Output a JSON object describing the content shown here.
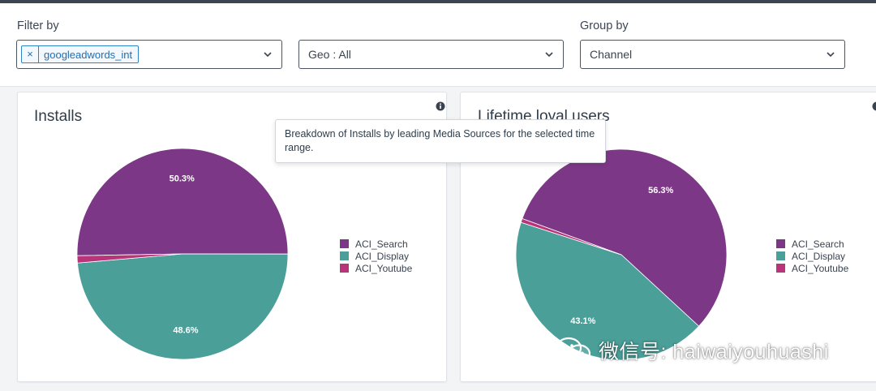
{
  "filters": {
    "filter_by_label": "Filter by",
    "filter_chip": {
      "remove_symbol": "×",
      "text": "googleadwords_int"
    },
    "geo_select_value": "Geo : All",
    "group_by_label": "Group by",
    "group_by_value": "Channel"
  },
  "colors": {
    "search": "#7c3886",
    "display": "#4a9f99",
    "youtube": "#b9357a"
  },
  "installs_card": {
    "title": "Installs",
    "legend": [
      "ACI_Search",
      "ACI_Display",
      "ACI_Youtube"
    ],
    "chart_data": {
      "type": "pie",
      "title": "Installs",
      "slices": [
        {
          "label": "ACI_Search",
          "percent": 50.3,
          "label_text": "50.3%"
        },
        {
          "label": "ACI_Display",
          "percent": 48.6,
          "label_text": "48.6%"
        },
        {
          "label": "ACI_Youtube",
          "percent": 1.1,
          "label_text": ""
        }
      ]
    }
  },
  "loyal_card": {
    "title": "Lifetime loyal users",
    "legend": [
      "ACI_Search",
      "ACI_Display",
      "ACI_Youtube"
    ],
    "chart_data": {
      "type": "pie",
      "title": "Lifetime loyal users",
      "slices": [
        {
          "label": "ACI_Search",
          "percent": 56.3,
          "label_text": "56.3%"
        },
        {
          "label": "ACI_Display",
          "percent": 43.1,
          "label_text": "43.1%"
        },
        {
          "label": "ACI_Youtube",
          "percent": 0.6,
          "label_text": ""
        }
      ]
    }
  },
  "tooltip": {
    "text": "Breakdown of Installs by leading Media Sources for the selected time range."
  },
  "watermark": {
    "text": "微信号: haiwaiyouhuashi"
  }
}
